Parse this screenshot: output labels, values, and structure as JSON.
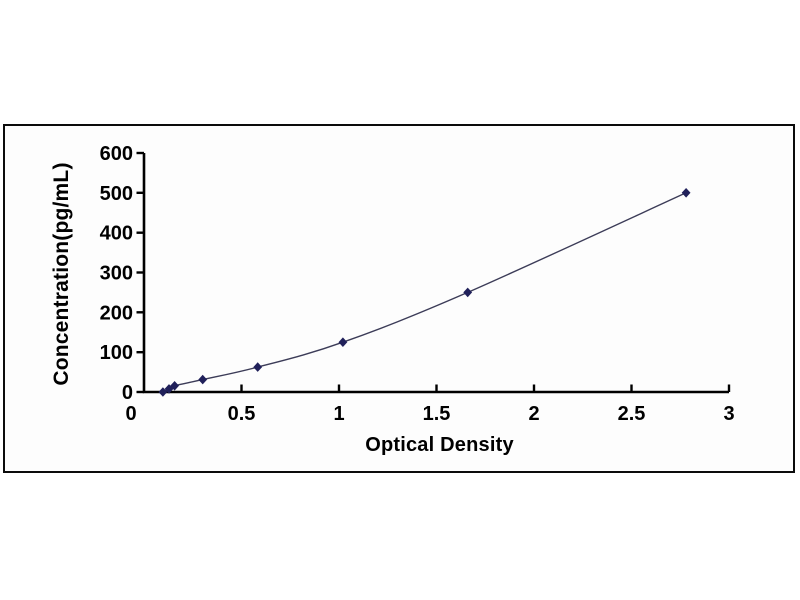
{
  "chart_data": {
    "type": "scatter",
    "title": "",
    "xlabel": "Optical Density",
    "ylabel": "Concentration(pg/mL)",
    "x": [
      0.097,
      0.128,
      0.157,
      0.301,
      0.583,
      1.02,
      1.66,
      2.78
    ],
    "y": [
      0,
      7.8,
      15.6,
      31.2,
      62.5,
      125,
      250,
      500
    ],
    "xlim": [
      0,
      3
    ],
    "ylim": [
      0,
      600
    ],
    "x_ticks": [
      "0",
      "0.5",
      "1",
      "1.5",
      "2",
      "2.5",
      "3"
    ],
    "x_tick_values": [
      0,
      0.5,
      1,
      1.5,
      2,
      2.5,
      3
    ],
    "y_ticks": [
      "0",
      "100",
      "200",
      "300",
      "400",
      "500",
      "600"
    ],
    "y_tick_values": [
      0,
      100,
      200,
      300,
      400,
      500,
      600
    ],
    "grid": false,
    "legend": null,
    "line_style": "smooth",
    "marker": "diamond",
    "colors": {
      "marker": "#20205a",
      "line": "#3c3c58",
      "axis": "#000000",
      "frame_border": "#0b0b0b",
      "background": "#ffffff"
    }
  }
}
